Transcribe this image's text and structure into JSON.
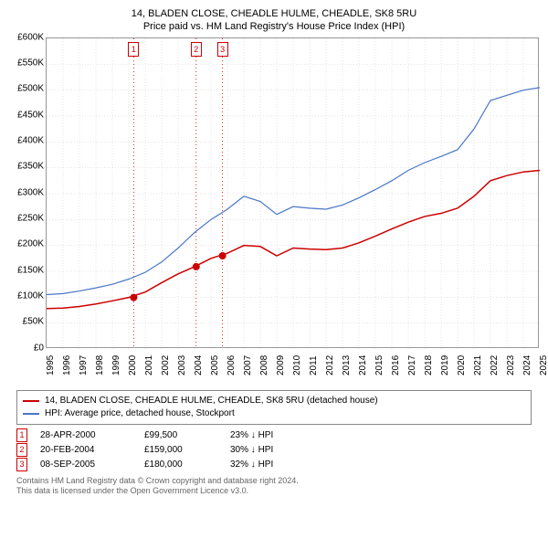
{
  "title": {
    "line1": "14, BLADEN CLOSE, CHEADLE HULME, CHEADLE, SK8 5RU",
    "line2": "Price paid vs. HM Land Registry's House Price Index (HPI)"
  },
  "chart": {
    "type": "line",
    "background_color": "#ffffff",
    "grid_color": "#cccccc",
    "axis_color": "#999999",
    "xlim": [
      1995,
      2025
    ],
    "ylim": [
      0,
      600000
    ],
    "ytick_step": 50000,
    "yticks": [
      "£0",
      "£50K",
      "£100K",
      "£150K",
      "£200K",
      "£250K",
      "£300K",
      "£350K",
      "£400K",
      "£450K",
      "£500K",
      "£550K",
      "£600K"
    ],
    "xticks": [
      "1995",
      "1996",
      "1997",
      "1998",
      "1999",
      "2000",
      "2001",
      "2002",
      "2003",
      "2004",
      "2005",
      "2006",
      "2007",
      "2008",
      "2009",
      "2010",
      "2011",
      "2012",
      "2013",
      "2014",
      "2015",
      "2016",
      "2017",
      "2018",
      "2019",
      "2020",
      "2021",
      "2022",
      "2023",
      "2024",
      "2025"
    ],
    "series": [
      {
        "name": "property",
        "label": "14, BLADEN CLOSE, CHEADLE HULME, CHEADLE, SK8 5RU (detached house)",
        "color": "#cc0000",
        "line_width": 1.5,
        "points": [
          [
            1995,
            78000
          ],
          [
            1996,
            79000
          ],
          [
            1997,
            82000
          ],
          [
            1998,
            87000
          ],
          [
            1999,
            93000
          ],
          [
            2000,
            99500
          ],
          [
            2001,
            110000
          ],
          [
            2002,
            128000
          ],
          [
            2003,
            145000
          ],
          [
            2004,
            159000
          ],
          [
            2005,
            175000
          ],
          [
            2006,
            185000
          ],
          [
            2007,
            200000
          ],
          [
            2008,
            198000
          ],
          [
            2009,
            180000
          ],
          [
            2010,
            195000
          ],
          [
            2011,
            193000
          ],
          [
            2012,
            192000
          ],
          [
            2013,
            195000
          ],
          [
            2014,
            205000
          ],
          [
            2015,
            218000
          ],
          [
            2016,
            232000
          ],
          [
            2017,
            245000
          ],
          [
            2018,
            256000
          ],
          [
            2019,
            262000
          ],
          [
            2020,
            272000
          ],
          [
            2021,
            295000
          ],
          [
            2022,
            325000
          ],
          [
            2023,
            335000
          ],
          [
            2024,
            342000
          ],
          [
            2025,
            345000
          ]
        ]
      },
      {
        "name": "hpi",
        "label": "HPI: Average price, detached house, Stockport",
        "color": "#4a76c7",
        "line_width": 1.2,
        "points": [
          [
            1995,
            105000
          ],
          [
            1996,
            107000
          ],
          [
            1997,
            112000
          ],
          [
            1998,
            118000
          ],
          [
            1999,
            125000
          ],
          [
            2000,
            135000
          ],
          [
            2001,
            148000
          ],
          [
            2002,
            168000
          ],
          [
            2003,
            195000
          ],
          [
            2004,
            225000
          ],
          [
            2005,
            250000
          ],
          [
            2006,
            270000
          ],
          [
            2007,
            295000
          ],
          [
            2008,
            285000
          ],
          [
            2009,
            260000
          ],
          [
            2010,
            275000
          ],
          [
            2011,
            272000
          ],
          [
            2012,
            270000
          ],
          [
            2013,
            278000
          ],
          [
            2014,
            292000
          ],
          [
            2015,
            308000
          ],
          [
            2016,
            325000
          ],
          [
            2017,
            345000
          ],
          [
            2018,
            360000
          ],
          [
            2019,
            372000
          ],
          [
            2020,
            385000
          ],
          [
            2021,
            425000
          ],
          [
            2022,
            480000
          ],
          [
            2023,
            490000
          ],
          [
            2024,
            500000
          ],
          [
            2025,
            505000
          ]
        ]
      }
    ],
    "sale_markers": [
      {
        "num": "1",
        "year": 2000.3,
        "price": 99500
      },
      {
        "num": "2",
        "year": 2004.1,
        "price": 159000
      },
      {
        "num": "3",
        "year": 2005.7,
        "price": 180000
      }
    ],
    "marker_dot_color": "#cc0000",
    "marker_line_color": "#cc0000",
    "marker_box_border": "#cc0000"
  },
  "transactions": [
    {
      "num": "1",
      "date": "28-APR-2000",
      "price": "£99,500",
      "diff": "23% ↓ HPI"
    },
    {
      "num": "2",
      "date": "20-FEB-2004",
      "price": "£159,000",
      "diff": "30% ↓ HPI"
    },
    {
      "num": "3",
      "date": "08-SEP-2005",
      "price": "£180,000",
      "diff": "32% ↓ HPI"
    }
  ],
  "footer": {
    "line1": "Contains HM Land Registry data © Crown copyright and database right 2024.",
    "line2": "This data is licensed under the Open Government Licence v3.0."
  }
}
